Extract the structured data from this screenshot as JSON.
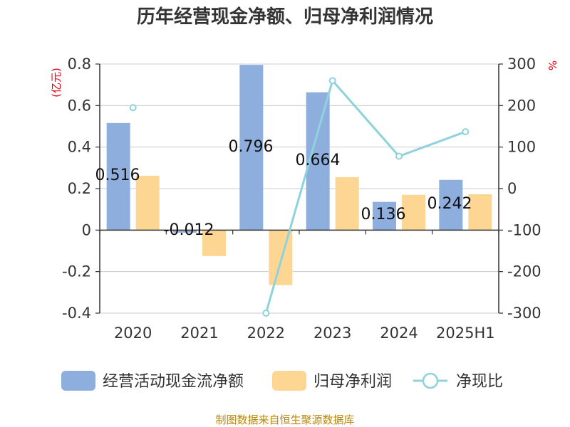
{
  "colors": {
    "bar1": "#8eaede",
    "bar2": "#fed694",
    "line": "#8ed3dc",
    "axis": "#333333",
    "grid": "#cccccc",
    "unit": "#e60012",
    "source": "#b8860b"
  },
  "chart_data": {
    "type": "bar",
    "title": "历年经营现金净额、归母净利润情况",
    "categories": [
      "2020",
      "2021",
      "2022",
      "2023",
      "2024",
      "2025H1"
    ],
    "y_left": {
      "unit_label": "(亿元)",
      "range": [
        -0.4,
        0.8
      ],
      "ticks": [
        -0.4,
        -0.2,
        0,
        0.2,
        0.4,
        0.6,
        0.8
      ],
      "tick_labels": [
        "-0.4",
        "-0.2",
        "0",
        "0.2",
        "0.4",
        "0.6",
        "0.8"
      ]
    },
    "y_right": {
      "unit_label": "%",
      "range": [
        -300,
        300
      ],
      "ticks": [
        -300,
        -200,
        -100,
        0,
        100,
        200,
        300
      ],
      "tick_labels": [
        "-300",
        "-200",
        "-100",
        "0",
        "100",
        "200",
        "300"
      ]
    },
    "grid": true,
    "legend_position": "bottom",
    "series": [
      {
        "name": "经营活动现金流净额",
        "kind": "bar",
        "axis": "left",
        "values": [
          0.516,
          -0.012,
          0.796,
          0.664,
          0.136,
          0.242
        ],
        "labels": [
          "0.516",
          "-0.012",
          "0.796",
          "0.664",
          "0.136",
          "0.242"
        ]
      },
      {
        "name": "归母净利润",
        "kind": "bar",
        "axis": "left",
        "values": [
          0.262,
          -0.125,
          -0.265,
          0.255,
          0.17,
          0.173
        ]
      },
      {
        "name": "净现比",
        "kind": "line",
        "axis": "right",
        "values": [
          195,
          null,
          -300,
          260,
          78,
          137
        ]
      }
    ]
  },
  "source_text": "制图数据来自恒生聚源数据库"
}
